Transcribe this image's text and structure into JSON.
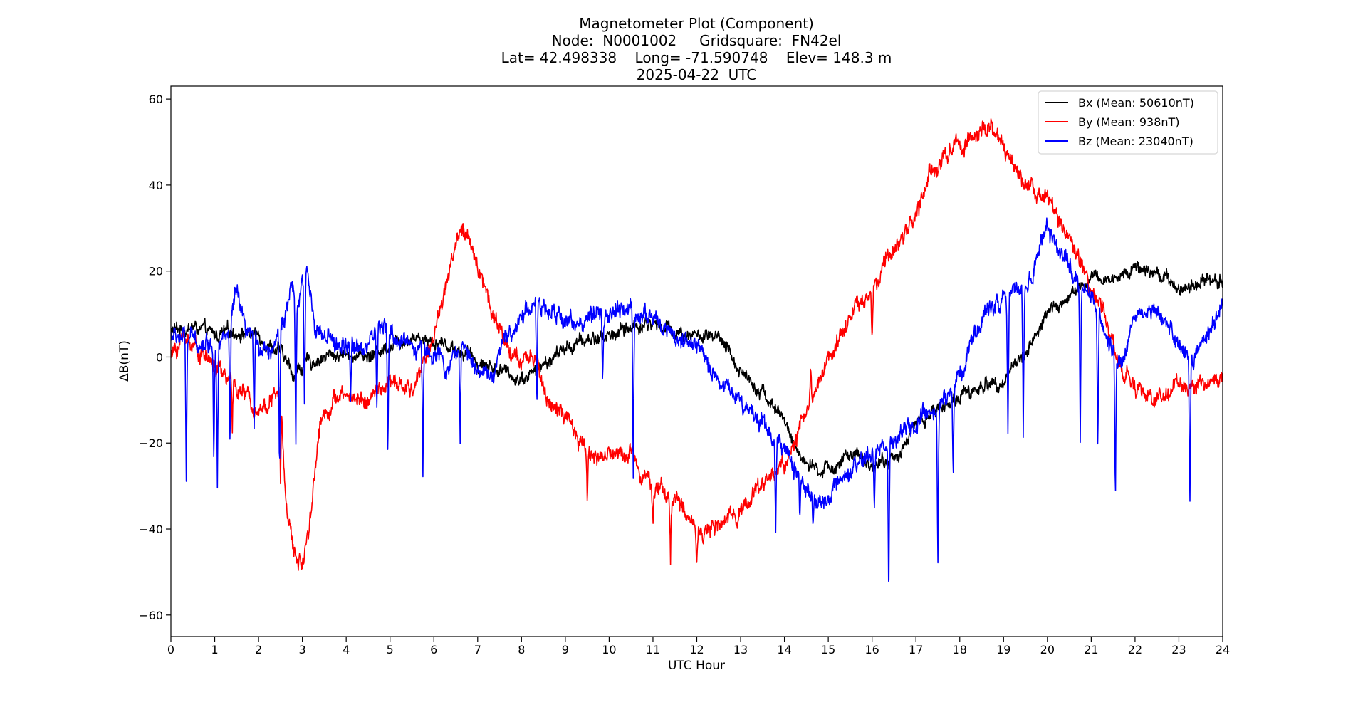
{
  "chart_data": {
    "type": "line",
    "title_lines": [
      "Magnetometer Plot (Component)",
      "Node:  N0001002     Gridsquare:  FN42el",
      "Lat= 42.498338    Long= -71.590748    Elev= 148.3 m",
      "2025-04-22  UTC"
    ],
    "xlabel": "UTC Hour",
    "ylabel": "ΔB(nT)",
    "xlim": [
      0,
      24
    ],
    "ylim": [
      -65,
      63
    ],
    "x_ticks": [
      0,
      1,
      2,
      3,
      4,
      5,
      6,
      7,
      8,
      9,
      10,
      11,
      12,
      13,
      14,
      15,
      16,
      17,
      18,
      19,
      20,
      21,
      22,
      23,
      24
    ],
    "y_ticks": [
      -60,
      -40,
      -20,
      0,
      20,
      40,
      60
    ],
    "y_tick_labels": [
      "−60",
      "−40",
      "−20",
      "0",
      "20",
      "40",
      "60"
    ],
    "grid": false,
    "legend_position": "upper-right",
    "series": [
      {
        "name": "Bx (Mean: 50610nT)",
        "color": "#000000",
        "noise": 1.2,
        "points": [
          [
            0,
            6
          ],
          [
            0.5,
            7
          ],
          [
            1,
            5
          ],
          [
            1.5,
            6
          ],
          [
            2,
            5
          ],
          [
            2.5,
            1
          ],
          [
            2.8,
            -4
          ],
          [
            3,
            -2
          ],
          [
            3.5,
            0
          ],
          [
            4,
            1
          ],
          [
            4.5,
            0
          ],
          [
            5,
            3
          ],
          [
            5.5,
            5
          ],
          [
            6,
            4
          ],
          [
            6.5,
            2
          ],
          [
            7,
            -1
          ],
          [
            7.5,
            -3
          ],
          [
            8,
            -5
          ],
          [
            8.5,
            -2
          ],
          [
            9,
            2
          ],
          [
            9.5,
            4
          ],
          [
            10,
            5
          ],
          [
            10.5,
            7
          ],
          [
            11,
            8
          ],
          [
            11.5,
            6
          ],
          [
            12,
            5
          ],
          [
            12.5,
            4
          ],
          [
            13,
            -3
          ],
          [
            13.5,
            -8
          ],
          [
            14,
            -15
          ],
          [
            14.3,
            -22
          ],
          [
            14.7,
            -27
          ],
          [
            15,
            -26
          ],
          [
            15.5,
            -23
          ],
          [
            16,
            -25
          ],
          [
            16.5,
            -24
          ],
          [
            17,
            -16
          ],
          [
            17.5,
            -12
          ],
          [
            18,
            -9
          ],
          [
            18.5,
            -7
          ],
          [
            19,
            -5
          ],
          [
            19.5,
            1
          ],
          [
            20,
            10
          ],
          [
            20.5,
            14
          ],
          [
            21,
            18
          ],
          [
            21.5,
            18
          ],
          [
            22,
            21
          ],
          [
            22.5,
            20
          ],
          [
            23,
            16
          ],
          [
            23.5,
            18
          ],
          [
            24,
            18
          ]
        ],
        "spikes": []
      },
      {
        "name": "By (Mean: 938nT)",
        "color": "#ff0000",
        "noise": 1.5,
        "points": [
          [
            0,
            0
          ],
          [
            0.3,
            5
          ],
          [
            0.6,
            2
          ],
          [
            1,
            -2
          ],
          [
            1.5,
            -7
          ],
          [
            2,
            -12
          ],
          [
            2.3,
            -10
          ],
          [
            2.5,
            -8
          ],
          [
            2.6,
            -30
          ],
          [
            2.8,
            -46
          ],
          [
            3,
            -48
          ],
          [
            3.2,
            -35
          ],
          [
            3.4,
            -15
          ],
          [
            3.7,
            -10
          ],
          [
            4,
            -9
          ],
          [
            4.5,
            -10
          ],
          [
            5,
            -6
          ],
          [
            5.5,
            -8
          ],
          [
            6,
            5
          ],
          [
            6.3,
            18
          ],
          [
            6.6,
            30
          ],
          [
            7,
            22
          ],
          [
            7.3,
            12
          ],
          [
            7.6,
            4
          ],
          [
            8,
            -2
          ],
          [
            8.3,
            0
          ],
          [
            8.6,
            -10
          ],
          [
            9,
            -14
          ],
          [
            9.3,
            -20
          ],
          [
            9.7,
            -23
          ],
          [
            10,
            -23
          ],
          [
            10.5,
            -22
          ],
          [
            11,
            -30
          ],
          [
            11.5,
            -33
          ],
          [
            12,
            -40
          ],
          [
            12.5,
            -40
          ],
          [
            13,
            -35
          ],
          [
            13.3,
            -32
          ],
          [
            13.6,
            -28
          ],
          [
            14,
            -25
          ],
          [
            14.3,
            -18
          ],
          [
            14.7,
            -8
          ],
          [
            15,
            0
          ],
          [
            15.5,
            10
          ],
          [
            16,
            15
          ],
          [
            16.5,
            25
          ],
          [
            17,
            33
          ],
          [
            17.3,
            42
          ],
          [
            17.6,
            46
          ],
          [
            18,
            50
          ],
          [
            18.3,
            51
          ],
          [
            18.7,
            53
          ],
          [
            19,
            48
          ],
          [
            19.3,
            43
          ],
          [
            19.6,
            40
          ],
          [
            20,
            38
          ],
          [
            20.3,
            30
          ],
          [
            20.7,
            23
          ],
          [
            21,
            15
          ],
          [
            21.3,
            10
          ],
          [
            21.6,
            0
          ],
          [
            22,
            -8
          ],
          [
            22.5,
            -9
          ],
          [
            23,
            -7
          ],
          [
            23.5,
            -6
          ],
          [
            24,
            -5
          ]
        ],
        "spikes": [
          [
            1.4,
            -20
          ],
          [
            2.5,
            -30
          ],
          [
            8,
            -3
          ],
          [
            9.5,
            -33
          ],
          [
            11,
            -39
          ],
          [
            11.4,
            -47
          ],
          [
            12,
            -47
          ],
          [
            14.6,
            -3
          ],
          [
            16,
            1
          ]
        ]
      },
      {
        "name": "Bz (Mean: 23040nT)",
        "color": "#0000ff",
        "noise": 1.6,
        "points": [
          [
            0,
            5
          ],
          [
            0.5,
            4
          ],
          [
            1,
            3
          ],
          [
            1.3,
            5
          ],
          [
            1.5,
            15
          ],
          [
            1.7,
            5
          ],
          [
            2,
            3
          ],
          [
            2.3,
            2
          ],
          [
            2.6,
            10
          ],
          [
            2.75,
            15
          ],
          [
            2.9,
            12
          ],
          [
            3.1,
            20
          ],
          [
            3.3,
            8
          ],
          [
            3.5,
            4
          ],
          [
            4,
            2
          ],
          [
            4.5,
            3
          ],
          [
            4.7,
            7
          ],
          [
            5,
            5
          ],
          [
            5.5,
            3
          ],
          [
            6,
            1
          ],
          [
            6.3,
            -3
          ],
          [
            6.6,
            3
          ],
          [
            7,
            -2
          ],
          [
            7.3,
            -5
          ],
          [
            7.6,
            3
          ],
          [
            8,
            10
          ],
          [
            8.3,
            13
          ],
          [
            8.6,
            10
          ],
          [
            9,
            9
          ],
          [
            9.5,
            8
          ],
          [
            10,
            10
          ],
          [
            10.5,
            11
          ],
          [
            11,
            9
          ],
          [
            11.5,
            5
          ],
          [
            12,
            2
          ],
          [
            12.5,
            -5
          ],
          [
            13,
            -10
          ],
          [
            13.5,
            -15
          ],
          [
            14,
            -22
          ],
          [
            14.3,
            -26
          ],
          [
            14.7,
            -35
          ],
          [
            15,
            -33
          ],
          [
            15.5,
            -28
          ],
          [
            16,
            -22
          ],
          [
            16.5,
            -20
          ],
          [
            17,
            -16
          ],
          [
            17.5,
            -12
          ],
          [
            18,
            -5
          ],
          [
            18.3,
            5
          ],
          [
            18.6,
            10
          ],
          [
            19,
            15
          ],
          [
            19.5,
            16
          ],
          [
            20,
            30
          ],
          [
            20.3,
            25
          ],
          [
            20.6,
            18
          ],
          [
            21,
            14
          ],
          [
            21.3,
            5
          ],
          [
            21.6,
            -2
          ],
          [
            22,
            10
          ],
          [
            22.5,
            10
          ],
          [
            23,
            3
          ],
          [
            23.3,
            -1
          ],
          [
            23.6,
            5
          ],
          [
            24,
            12
          ]
        ],
        "spikes": [
          [
            0.35,
            -31
          ],
          [
            0.98,
            -23
          ],
          [
            1.06,
            -29
          ],
          [
            1.35,
            -24
          ],
          [
            1.9,
            -19
          ],
          [
            2.48,
            -31
          ],
          [
            2.85,
            -23
          ],
          [
            3.05,
            -17
          ],
          [
            4.1,
            -12
          ],
          [
            4.7,
            -16
          ],
          [
            4.95,
            -24
          ],
          [
            5.75,
            -29
          ],
          [
            6.6,
            -20
          ],
          [
            8.35,
            -13
          ],
          [
            9.85,
            -6
          ],
          [
            10.55,
            -30
          ],
          [
            12.2,
            1
          ],
          [
            13.8,
            -39
          ],
          [
            14.35,
            -39
          ],
          [
            14.65,
            -41
          ],
          [
            16.05,
            -36
          ],
          [
            16.38,
            -59
          ],
          [
            17.5,
            -50
          ],
          [
            17.85,
            -28
          ],
          [
            19.1,
            -19
          ],
          [
            19.45,
            -19
          ],
          [
            20.75,
            -20
          ],
          [
            21.15,
            -25
          ],
          [
            21.55,
            -38
          ],
          [
            23.25,
            -37
          ]
        ]
      }
    ]
  }
}
